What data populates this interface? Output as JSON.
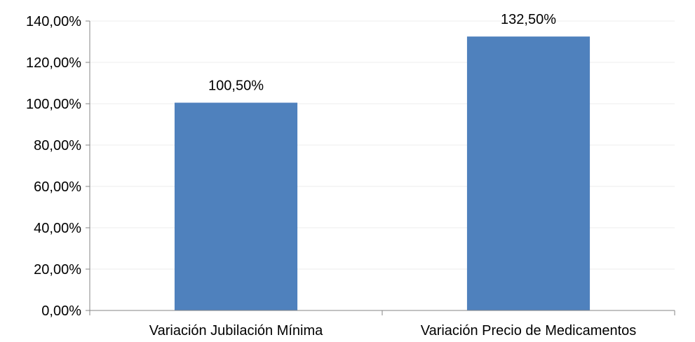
{
  "chart_data": {
    "type": "bar",
    "title": "",
    "xlabel": "",
    "ylabel": "",
    "categories": [
      "Variación Jubilación Mínima",
      "Variación Precio de Medicamentos"
    ],
    "values": [
      100.5,
      132.5
    ],
    "data_labels": [
      "100,50%",
      "132,50%"
    ],
    "ylim": [
      0,
      140
    ],
    "y_ticks": [
      0,
      20,
      40,
      60,
      80,
      100,
      120,
      140
    ],
    "y_tick_labels": [
      "0,00%",
      "20,00%",
      "40,00%",
      "60,00%",
      "80,00%",
      "100,00%",
      "120,00%",
      "140,00%"
    ],
    "grid": true,
    "legend": "none",
    "bar_color": "#4f81bd",
    "grid_color": "#ececec",
    "axis_color": "#868686"
  }
}
